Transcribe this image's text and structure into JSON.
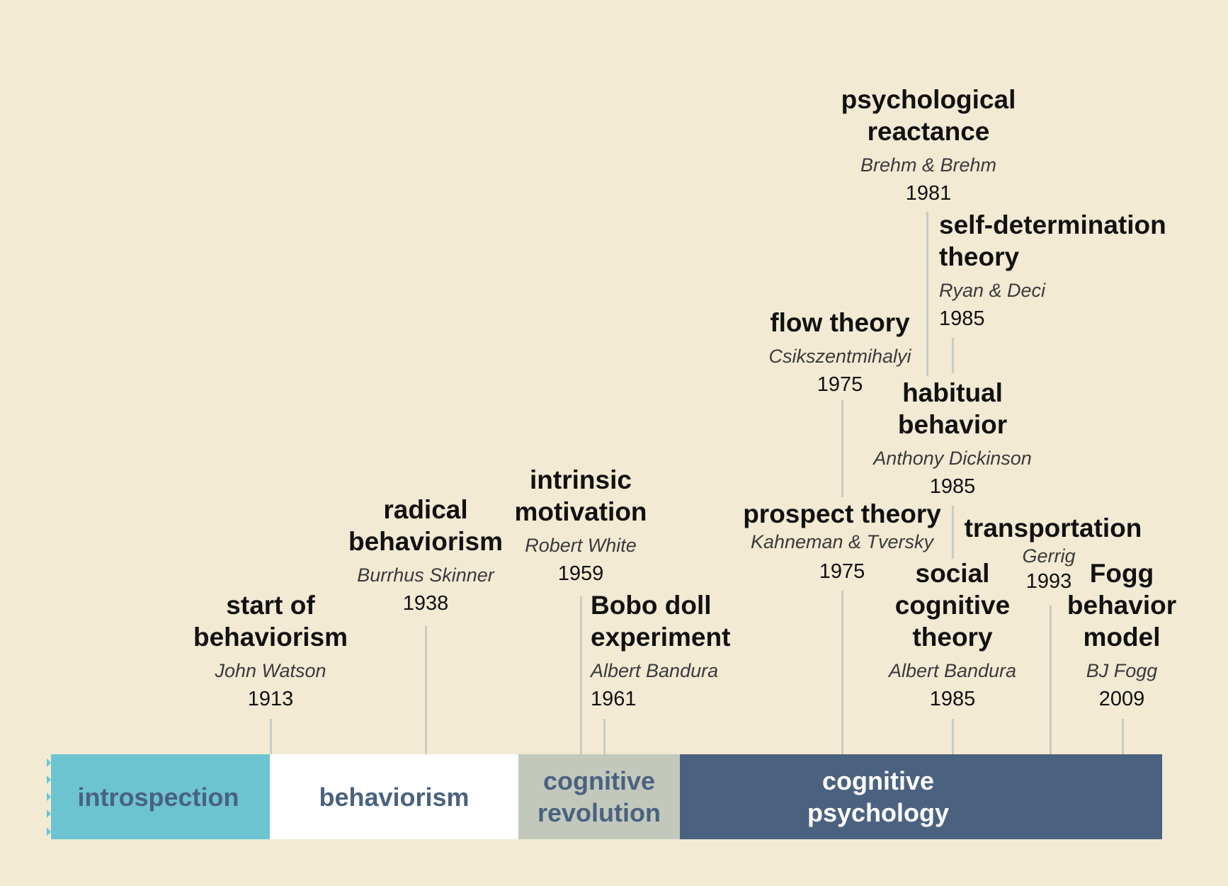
{
  "colors": {
    "background": "#f2ead3",
    "connector": "#c6ccc0",
    "introspection": "#6cc4d1",
    "behaviorism": "#ffffff",
    "cognitive_revolution": "#c2c8bc",
    "cognitive_psychology": "#4a627f",
    "era_text_dark": "#4a627f",
    "era_text_light": "#ffffff"
  },
  "eras": [
    {
      "id": "introspection",
      "label": "introspection"
    },
    {
      "id": "behaviorism",
      "label": "behaviorism"
    },
    {
      "id": "cognitive-revolution",
      "label": "cognitive\nrevolution"
    },
    {
      "id": "cognitive-psychology",
      "label": "cognitive\npsychology"
    }
  ],
  "events": [
    {
      "id": "start-of-behaviorism",
      "title": "start of\nbehaviorism",
      "author": "John Watson",
      "year": "1913"
    },
    {
      "id": "radical-behaviorism",
      "title": "radical\nbehaviorism",
      "author": "Burrhus Skinner",
      "year": "1938"
    },
    {
      "id": "intrinsic-motivation",
      "title": "intrinsic\nmotivation",
      "author": "Robert White",
      "year": "1959"
    },
    {
      "id": "bobo-doll-experiment",
      "title": "Bobo doll\nexperiment",
      "author": "Albert Bandura",
      "year": "1961"
    },
    {
      "id": "prospect-theory",
      "title": "prospect theory",
      "author": "Kahneman & Tversky",
      "year": "1975"
    },
    {
      "id": "flow-theory",
      "title": "flow theory",
      "author": "Csikszentmihalyi",
      "year": "1975"
    },
    {
      "id": "psychological-reactance",
      "title": "psychological\nreactance",
      "author": "Brehm & Brehm",
      "year": "1981"
    },
    {
      "id": "self-determination-theory",
      "title": "self-determination\ntheory",
      "author": "Ryan & Deci",
      "year": "1985"
    },
    {
      "id": "habitual-behavior",
      "title": "habitual\nbehavior",
      "author": "Anthony Dickinson",
      "year": "1985"
    },
    {
      "id": "social-cognitive-theory",
      "title": "social\ncognitive\ntheory",
      "author": "Albert Bandura",
      "year": "1985"
    },
    {
      "id": "transportation",
      "title": "transportation",
      "author": "Gerrig",
      "year": "1993"
    },
    {
      "id": "fogg-behavior-model",
      "title": "Fogg\nbehavior\nmodel",
      "author": "BJ Fogg",
      "year": "2009"
    }
  ]
}
